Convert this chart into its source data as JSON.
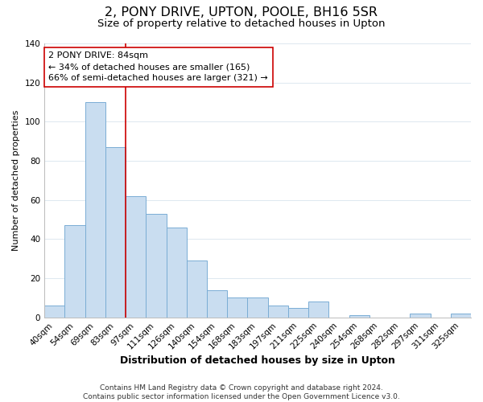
{
  "title": "2, PONY DRIVE, UPTON, POOLE, BH16 5SR",
  "subtitle": "Size of property relative to detached houses in Upton",
  "xlabel": "Distribution of detached houses by size in Upton",
  "ylabel": "Number of detached properties",
  "bar_labels": [
    "40sqm",
    "54sqm",
    "69sqm",
    "83sqm",
    "97sqm",
    "111sqm",
    "126sqm",
    "140sqm",
    "154sqm",
    "168sqm",
    "183sqm",
    "197sqm",
    "211sqm",
    "225sqm",
    "240sqm",
    "254sqm",
    "268sqm",
    "282sqm",
    "297sqm",
    "311sqm",
    "325sqm"
  ],
  "bar_values": [
    6,
    47,
    110,
    87,
    62,
    53,
    46,
    29,
    14,
    10,
    10,
    6,
    5,
    8,
    0,
    1,
    0,
    0,
    2,
    0,
    2
  ],
  "bar_color": "#c9ddf0",
  "bar_edge_color": "#7aadd4",
  "highlight_index": 3,
  "highlight_line_color": "#cc0000",
  "annotation_line1": "2 PONY DRIVE: 84sqm",
  "annotation_line2": "← 34% of detached houses are smaller (165)",
  "annotation_line3": "66% of semi-detached houses are larger (321) →",
  "annotation_box_edge_color": "#cc0000",
  "ylim": [
    0,
    140
  ],
  "yticks": [
    0,
    20,
    40,
    60,
    80,
    100,
    120,
    140
  ],
  "footer_text": "Contains HM Land Registry data © Crown copyright and database right 2024.\nContains public sector information licensed under the Open Government Licence v3.0.",
  "title_fontsize": 11.5,
  "subtitle_fontsize": 9.5,
  "xlabel_fontsize": 9,
  "ylabel_fontsize": 8,
  "tick_fontsize": 7.5,
  "annotation_fontsize": 8,
  "footer_fontsize": 6.5,
  "background_color": "#ffffff",
  "grid_color": "#dde8f0"
}
